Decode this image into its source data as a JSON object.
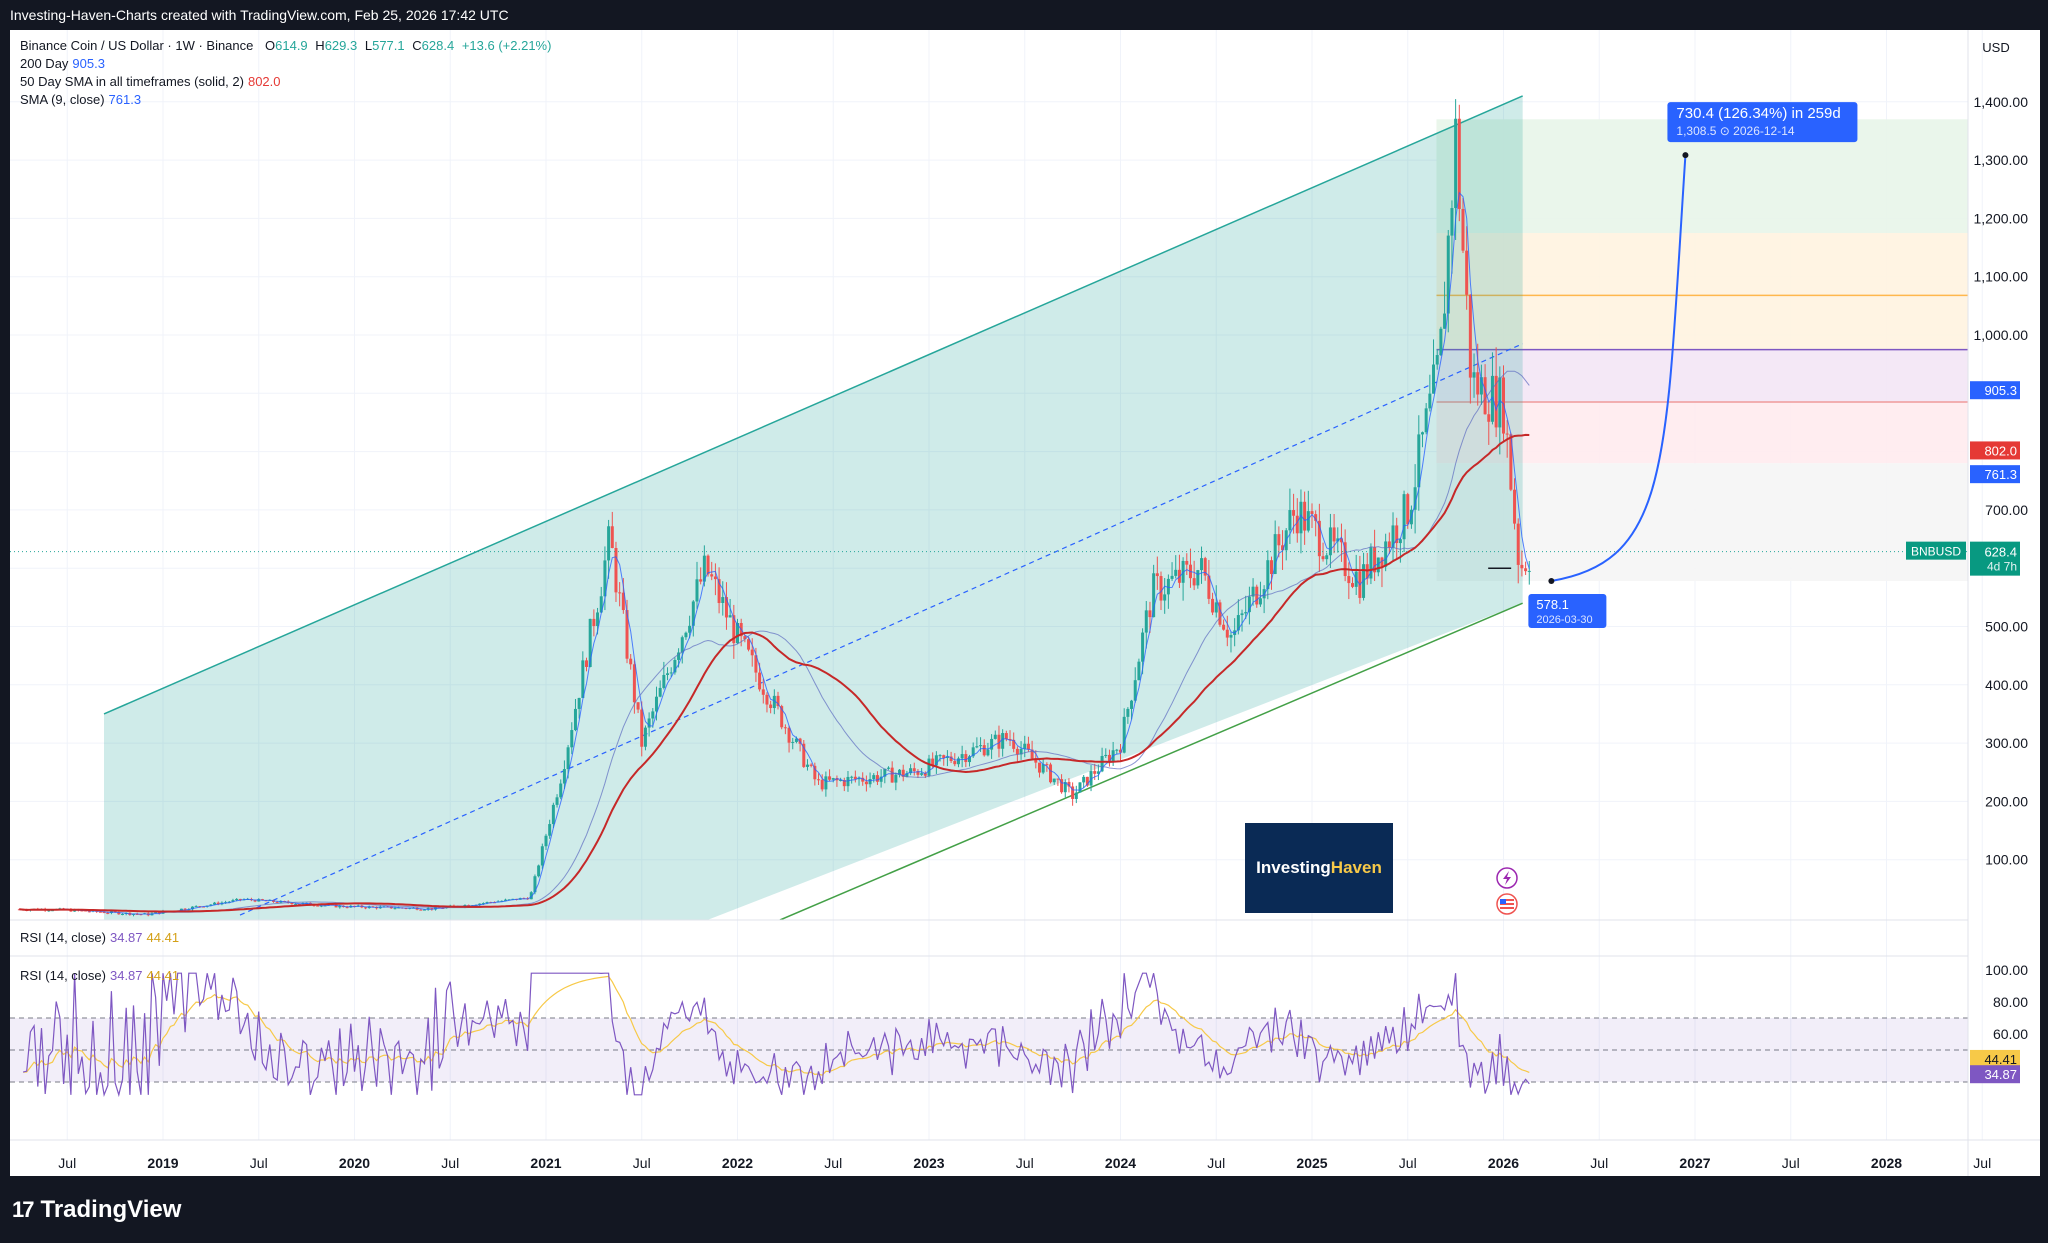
{
  "header": {
    "credit": "Investing-Haven-Charts created with TradingView.com, Feb 25, 2026 17:42 UTC",
    "brand": "TradingView"
  },
  "legend": {
    "symbol": "Binance Coin / US Dollar · 1W · Binance",
    "o_label": "O",
    "o": "614.9",
    "h_label": "H",
    "h": "629.3",
    "l_label": "L",
    "l": "577.1",
    "c_label": "C",
    "c": "628.4",
    "change": "+13.6 (+2.21%)",
    "ind1_name": "200 Day",
    "ind1_val": "905.3",
    "ind2_name": "50 Day SMA in all timeframes (solid, 2)",
    "ind2_val": "802.0",
    "ind3_name": "SMA (9, close)",
    "ind3_val": "761.3"
  },
  "currency": "USD",
  "watermark": {
    "part1": "Investing",
    "part2": "Haven"
  },
  "price_tags": {
    "sma200": "905.3",
    "sma50": "802.0",
    "sma9": "761.3",
    "symbol": "BNBUSD",
    "last": "628.4",
    "countdown": "4d 7h"
  },
  "annotations": {
    "target_line1": "730.4 (126.34%) in 259d",
    "target_line2": "1,308.5",
    "target_date": "2026-12-14",
    "start_value": "578.1",
    "start_date": "2026-03-30"
  },
  "rsi": {
    "legend1": "RSI (14, close)",
    "legend2": "RSI (14, close)",
    "rsi_val": "34.87",
    "ma_val": "44.41",
    "ticks": [
      "100.00",
      "80.00",
      "60.00"
    ],
    "tag_ma": "44.41",
    "tag_rsi": "34.87"
  },
  "colors": {
    "up": "#26a69a",
    "down": "#ef5350",
    "sma200": "#2962ff",
    "sma50": "#c62828",
    "rsi": "#7e57c2",
    "rsi_ma": "#f7c948",
    "channel": "#26a69a",
    "projection": "#2962ff"
  },
  "chart_data": {
    "type": "line",
    "title": "Binance Coin / US Dollar · 1W · Binance",
    "y_ticks": [
      "1,400.00",
      "1,300.00",
      "1,200.00",
      "1,100.00",
      "1,000.00",
      "700.00",
      "500.00",
      "400.00",
      "300.00",
      "200.00",
      "100.00"
    ],
    "x_ticks": [
      "Jul",
      "2019",
      "Jul",
      "2020",
      "Jul",
      "2021",
      "Jul",
      "2022",
      "Jul",
      "2023",
      "Jul",
      "2024",
      "Jul",
      "2025",
      "Jul",
      "2026",
      "Jul",
      "2027",
      "Jul",
      "2028",
      "Jul"
    ],
    "ylim": [
      0,
      1450
    ],
    "grid": true,
    "series": [
      {
        "name": "BNBUSD",
        "x": [
          "2018-06",
          "2018-12",
          "2019-06",
          "2019-12",
          "2020-06",
          "2020-12",
          "2021-02",
          "2021-05",
          "2021-07",
          "2021-11",
          "2022-01",
          "2022-06",
          "2022-12",
          "2023-06",
          "2023-10",
          "2024-01",
          "2024-03",
          "2024-06",
          "2024-08",
          "2024-12",
          "2025-04",
          "2025-07",
          "2025-09",
          "2025-10",
          "2025-11",
          "2026-01",
          "2026-02",
          "2026-02-25"
        ],
        "values": [
          15,
          6,
          32,
          20,
          16,
          35,
          250,
          650,
          300,
          600,
          480,
          230,
          250,
          310,
          210,
          300,
          560,
          600,
          480,
          700,
          580,
          700,
          950,
          1340,
          920,
          880,
          600,
          628.4
        ]
      },
      {
        "name": "200 Day",
        "last": 905.3
      },
      {
        "name": "50 Day SMA in all timeframes (solid, 2)",
        "last": 802.0
      },
      {
        "name": "SMA (9, close)",
        "last": 761.3
      },
      {
        "name": "RSI (14, close)",
        "last": 34.87
      },
      {
        "name": "RSI MA",
        "last": 44.41
      }
    ],
    "projection": {
      "from": {
        "date": "2026-03-30",
        "value": 578.1
      },
      "to": {
        "date": "2026-12-14",
        "value": 1308.5
      },
      "change": "730.4 (126.34%)",
      "bars": "259d"
    }
  }
}
